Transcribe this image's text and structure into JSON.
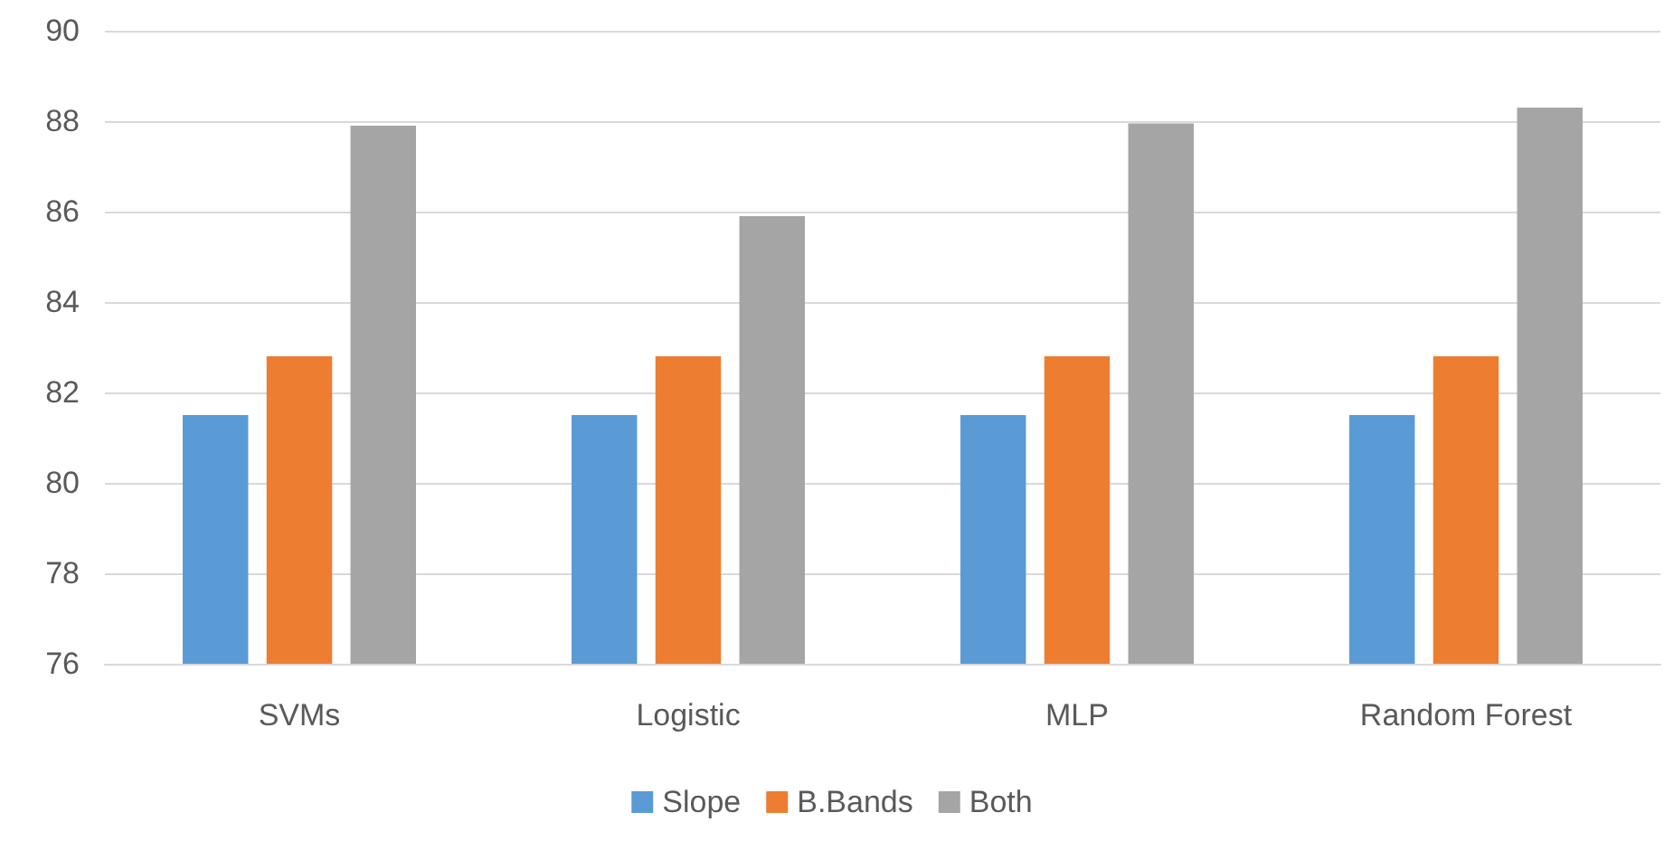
{
  "chart_data": {
    "type": "bar",
    "categories": [
      "SVMs",
      "Logistic",
      "MLP",
      "Random Forest"
    ],
    "series": [
      {
        "name": "Slope",
        "color": "#5b9bd5",
        "values": [
          81.5,
          81.5,
          81.5,
          81.5
        ]
      },
      {
        "name": "B.Bands",
        "color": "#ed7d31",
        "values": [
          82.8,
          82.8,
          82.8,
          82.8
        ]
      },
      {
        "name": "Both",
        "color": "#a5a5a5",
        "values": [
          87.9,
          85.9,
          87.95,
          88.3
        ]
      }
    ],
    "ylim": [
      76,
      90
    ],
    "yticks": [
      76,
      78,
      80,
      82,
      84,
      86,
      88,
      90
    ],
    "grid": "y",
    "legend": "bottom"
  }
}
